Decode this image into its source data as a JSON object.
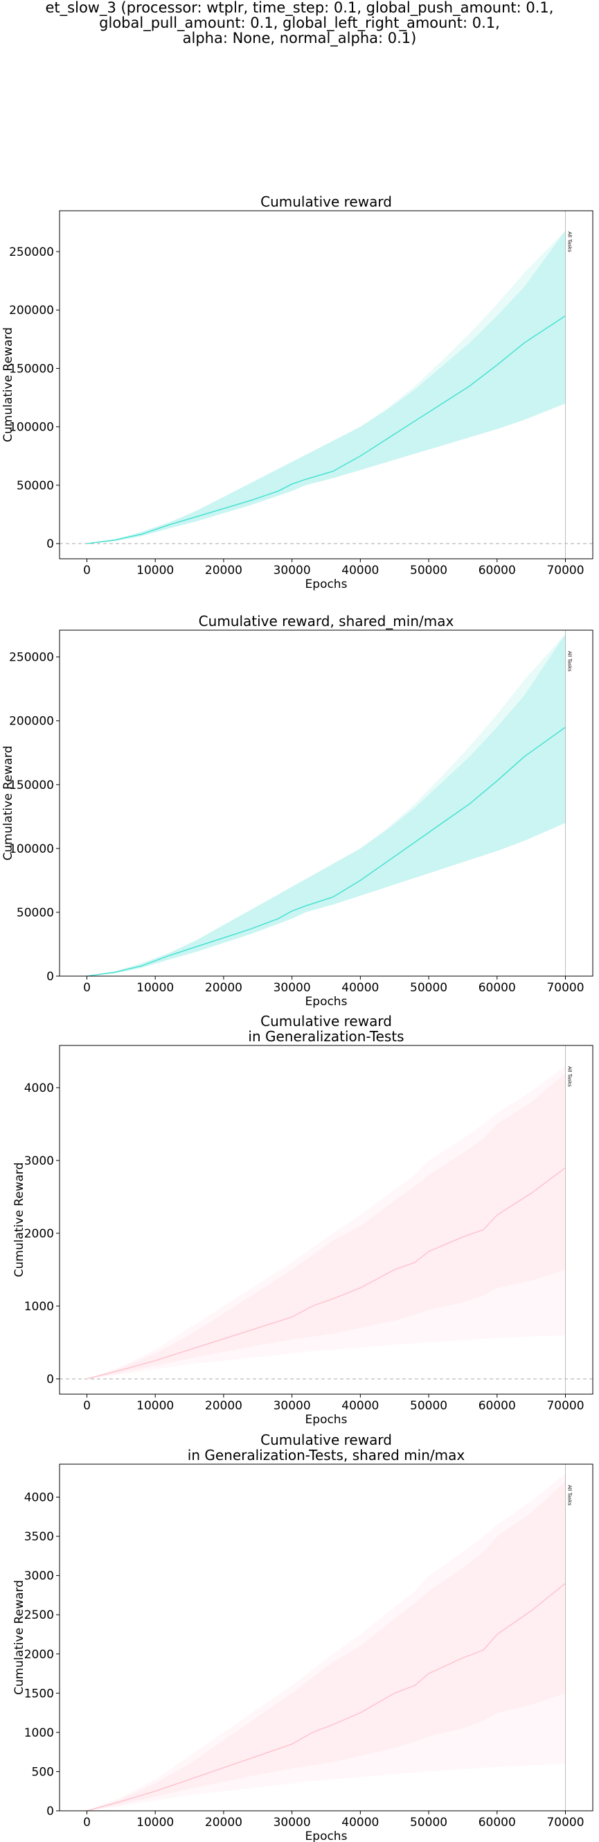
{
  "figure": {
    "suptitle_lines": [
      "et_slow_3 (processor: wtplr, time_step: 0.1, global_push_amount: 0.1,",
      "global_pull_amount: 0.1, global_left_right_amount: 0.1,",
      "alpha: None, normal_alpha: 0.1)"
    ]
  },
  "chart_data": [
    {
      "type": "line",
      "title": "Cumulative reward",
      "xlabel": "Epochs",
      "ylabel": "Cumulative Reward",
      "xlim": [
        -4000,
        74000
      ],
      "ylim": [
        -13000,
        285000
      ],
      "xticks": [
        0,
        10000,
        20000,
        30000,
        40000,
        50000,
        60000,
        70000
      ],
      "yticks": [
        0,
        50000,
        100000,
        150000,
        200000,
        250000
      ],
      "zero_line": true,
      "vline": {
        "x": 70000,
        "label": "All Tasks"
      },
      "color": "#40e0d0",
      "x": [
        0,
        4000,
        8000,
        12000,
        16000,
        20000,
        24000,
        28000,
        30000,
        32000,
        36000,
        40000,
        44000,
        48000,
        52000,
        56000,
        60000,
        64000,
        70000
      ],
      "series": [
        {
          "role": "mean",
          "values": [
            0,
            3000,
            8000,
            16000,
            23000,
            30000,
            37000,
            45000,
            51000,
            55000,
            62000,
            75000,
            90000,
            105000,
            120000,
            135000,
            153000,
            172000,
            195000
          ]
        },
        {
          "role": "band_lower",
          "values": [
            0,
            2000,
            6500,
            13000,
            19000,
            26000,
            33000,
            41000,
            45000,
            50000,
            56000,
            63000,
            70000,
            77000,
            84000,
            91000,
            98000,
            106000,
            120000
          ]
        },
        {
          "role": "band_upper",
          "values": [
            0,
            3500,
            10000,
            18000,
            28000,
            40000,
            52000,
            64000,
            70000,
            76000,
            88000,
            100000,
            115000,
            132000,
            152000,
            172000,
            195000,
            220000,
            268000
          ]
        },
        {
          "role": "band_outer_upper",
          "values": [
            0,
            3500,
            10000,
            18000,
            28000,
            40000,
            52000,
            64000,
            70000,
            76000,
            88000,
            100000,
            116000,
            135000,
            157000,
            180000,
            205000,
            232000,
            268000
          ]
        }
      ]
    },
    {
      "type": "line",
      "title": "Cumulative reward, shared_min/max",
      "xlabel": "Epochs",
      "ylabel": "Cumulative Reward",
      "xlim": [
        -4000,
        74000
      ],
      "ylim": [
        0,
        271000
      ],
      "xticks": [
        0,
        10000,
        20000,
        30000,
        40000,
        50000,
        60000,
        70000
      ],
      "yticks": [
        0,
        50000,
        100000,
        150000,
        200000,
        250000
      ],
      "zero_line": false,
      "vline": {
        "x": 70000,
        "label": "All Tasks"
      },
      "color": "#40e0d0",
      "x": [
        0,
        4000,
        8000,
        12000,
        16000,
        20000,
        24000,
        28000,
        30000,
        32000,
        36000,
        40000,
        44000,
        48000,
        52000,
        56000,
        60000,
        64000,
        70000
      ],
      "series": [
        {
          "role": "mean",
          "values": [
            0,
            3000,
            8000,
            16000,
            23000,
            30000,
            37000,
            45000,
            51000,
            55000,
            62000,
            75000,
            90000,
            105000,
            120000,
            135000,
            153000,
            172000,
            195000
          ]
        },
        {
          "role": "band_lower",
          "values": [
            0,
            2000,
            6500,
            13000,
            19000,
            26000,
            33000,
            41000,
            45000,
            50000,
            56000,
            63000,
            70000,
            77000,
            84000,
            91000,
            98000,
            106000,
            120000
          ]
        },
        {
          "role": "band_upper",
          "values": [
            0,
            3500,
            10000,
            18000,
            28000,
            40000,
            52000,
            64000,
            70000,
            76000,
            88000,
            100000,
            115000,
            132000,
            152000,
            172000,
            195000,
            220000,
            268000
          ]
        },
        {
          "role": "band_outer_upper",
          "values": [
            0,
            3500,
            10000,
            18000,
            28000,
            40000,
            52000,
            64000,
            70000,
            76000,
            88000,
            100000,
            116000,
            135000,
            157000,
            180000,
            205000,
            232000,
            268000
          ]
        }
      ]
    },
    {
      "type": "line",
      "title": "Cumulative reward\nin Generalization-Tests",
      "xlabel": "Epochs",
      "ylabel": "Cumulative Reward",
      "xlim": [
        -4000,
        74000
      ],
      "ylim": [
        -210,
        4580
      ],
      "xticks": [
        0,
        10000,
        20000,
        30000,
        40000,
        50000,
        60000,
        70000
      ],
      "yticks": [
        0,
        1000,
        2000,
        3000,
        4000
      ],
      "zero_line": true,
      "vline": {
        "x": 70000,
        "label": "All Tasks"
      },
      "color": "#ffc0cb",
      "x": [
        0,
        5000,
        10000,
        15000,
        20000,
        25000,
        30000,
        33000,
        36000,
        40000,
        45000,
        48000,
        50000,
        55000,
        58000,
        60000,
        65000,
        70000
      ],
      "series": [
        {
          "role": "mean",
          "values": [
            0,
            120,
            250,
            400,
            550,
            700,
            850,
            1000,
            1100,
            1250,
            1500,
            1600,
            1750,
            1950,
            2050,
            2250,
            2550,
            2900
          ]
        },
        {
          "role": "band_lower",
          "values": [
            0,
            80,
            180,
            280,
            370,
            460,
            540,
            580,
            620,
            700,
            800,
            880,
            950,
            1050,
            1150,
            1250,
            1350,
            1500
          ]
        },
        {
          "role": "band_upper",
          "values": [
            0,
            150,
            350,
            600,
            900,
            1200,
            1500,
            1700,
            1900,
            2100,
            2450,
            2650,
            2800,
            3100,
            3300,
            3500,
            3800,
            4200
          ]
        },
        {
          "role": "band_outer_lower",
          "values": [
            0,
            60,
            130,
            200,
            250,
            300,
            350,
            380,
            400,
            430,
            470,
            490,
            500,
            530,
            550,
            560,
            580,
            600
          ]
        },
        {
          "role": "band_outer_upper",
          "values": [
            0,
            170,
            400,
            700,
            1000,
            1300,
            1600,
            1800,
            2000,
            2250,
            2600,
            2800,
            3000,
            3300,
            3500,
            3650,
            3950,
            4300
          ]
        }
      ]
    },
    {
      "type": "line",
      "title": "Cumulative reward\nin Generalization-Tests, shared min/max",
      "xlabel": "Epochs",
      "ylabel": "Cumulative Reward",
      "xlim": [
        -4000,
        74000
      ],
      "ylim": [
        0,
        4420
      ],
      "xticks": [
        0,
        10000,
        20000,
        30000,
        40000,
        50000,
        60000,
        70000
      ],
      "yticks": [
        0,
        500,
        1000,
        1500,
        2000,
        2500,
        3000,
        3500,
        4000
      ],
      "zero_line": false,
      "vline": {
        "x": 70000,
        "label": "All Tasks"
      },
      "color": "#ffc0cb",
      "x": [
        0,
        5000,
        10000,
        15000,
        20000,
        25000,
        30000,
        33000,
        36000,
        40000,
        45000,
        48000,
        50000,
        55000,
        58000,
        60000,
        65000,
        70000
      ],
      "series": [
        {
          "role": "mean",
          "values": [
            0,
            120,
            250,
            400,
            550,
            700,
            850,
            1000,
            1100,
            1250,
            1500,
            1600,
            1750,
            1950,
            2050,
            2250,
            2550,
            2900
          ]
        },
        {
          "role": "band_lower",
          "values": [
            0,
            80,
            180,
            280,
            370,
            460,
            540,
            580,
            620,
            700,
            800,
            880,
            950,
            1050,
            1150,
            1250,
            1350,
            1500
          ]
        },
        {
          "role": "band_upper",
          "values": [
            0,
            150,
            350,
            600,
            900,
            1200,
            1500,
            1700,
            1900,
            2100,
            2450,
            2650,
            2800,
            3100,
            3300,
            3500,
            3800,
            4200
          ]
        },
        {
          "role": "band_outer_lower",
          "values": [
            0,
            60,
            130,
            200,
            250,
            300,
            350,
            380,
            400,
            430,
            470,
            490,
            500,
            530,
            550,
            560,
            580,
            600
          ]
        },
        {
          "role": "band_outer_upper",
          "values": [
            0,
            170,
            400,
            700,
            1000,
            1300,
            1600,
            1800,
            2000,
            2250,
            2600,
            2800,
            3000,
            3300,
            3500,
            3650,
            3950,
            4300
          ]
        }
      ]
    }
  ]
}
